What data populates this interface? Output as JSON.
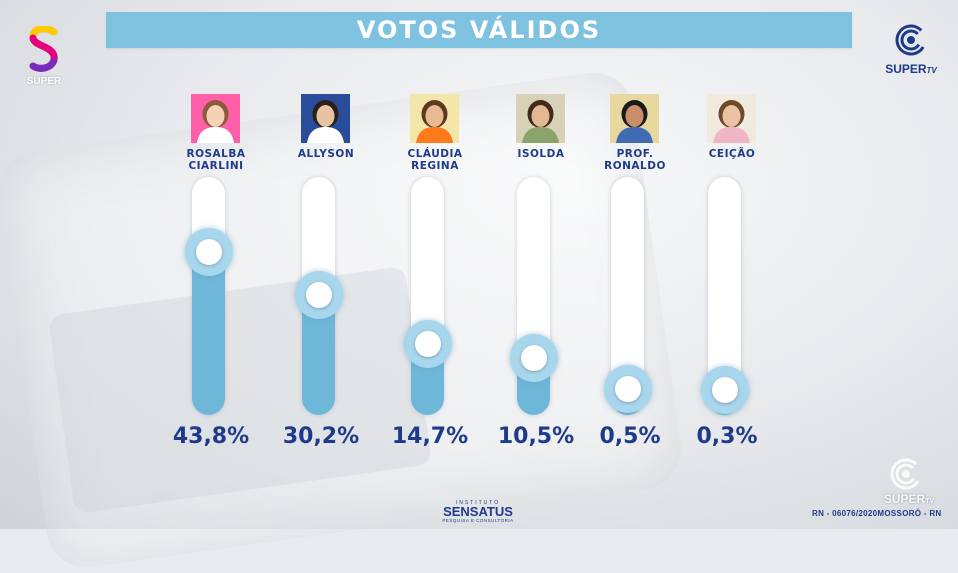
{
  "header": {
    "title": "VOTOS VÁLIDOS"
  },
  "brand_left": {
    "label": "SUPER"
  },
  "brand_right": {
    "label": "SUPER",
    "suffix": "TV"
  },
  "watermark": {
    "label": "SUPER",
    "suffix": "TV"
  },
  "footer": {
    "institute_pre": "INSTITUTO",
    "institute": "SENSATUS",
    "institute_sub": "PESQUISA E CONSULTORIA",
    "registration": "RN - 06076/2020MOSSORÓ - RN"
  },
  "colors": {
    "accent": "#7fc2e0",
    "fill": "#6fb7d9",
    "text": "#1e3a8a"
  },
  "chart_data": {
    "type": "bar",
    "title": "VOTOS VÁLIDOS",
    "categories": [
      "ROSALBA\nCIARLINI",
      "ALLYSON",
      "CLÁUDIA\nREGINA",
      "ISOLDA",
      "PROF.\nRONALDO",
      "CEIÇÃO"
    ],
    "values": [
      43.8,
      30.2,
      14.7,
      10.5,
      0.5,
      0.3
    ],
    "value_labels": [
      "43,8%",
      "30,2%",
      "14,7%",
      "10,5%",
      "0,5%",
      "0,3%"
    ],
    "ylim": [
      0,
      60
    ],
    "grid": false,
    "legend": "none"
  }
}
